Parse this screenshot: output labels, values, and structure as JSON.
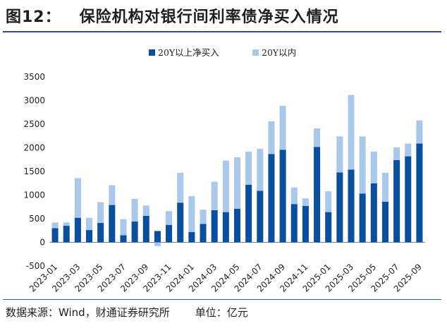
{
  "title": "图12：   保险机构对银行间利率债净买入情况",
  "footer": {
    "source": "数据来源：Wind，财通证券研究所",
    "unit": "单位：亿元"
  },
  "colors": {
    "series1": "#0a4f9c",
    "series2": "#a9c8ea",
    "rule": "#2b4f8c"
  },
  "chart_data": {
    "type": "bar",
    "stacked": true,
    "title": "",
    "xlabel": "",
    "ylabel": "",
    "ylim": [
      -500,
      3500
    ],
    "yticks": [
      -500,
      0,
      500,
      1000,
      1500,
      2000,
      2500,
      3000,
      3500
    ],
    "legend_position": "top-center",
    "categories": [
      "2023-01",
      "2023-02",
      "2023-03",
      "2023-04",
      "2023-05",
      "2023-06",
      "2023-07",
      "2023-08",
      "2023-09",
      "2023-10",
      "2023-11",
      "2023-12",
      "2024-01",
      "2024-02",
      "2024-03",
      "2024-04",
      "2024-05",
      "2024-06",
      "2024-07",
      "2024-08",
      "2024-09",
      "2024-10",
      "2024-11",
      "2024-12",
      "2025-01",
      "2025-02",
      "2025-03",
      "2025-04",
      "2025-05",
      "2025-06",
      "2025-07",
      "2025-08",
      "2025-09"
    ],
    "xtick_labels": [
      "2023-01",
      "2023-03",
      "2023-05",
      "2023-07",
      "2023-09",
      "2023-11",
      "2024-01",
      "2024-03",
      "2024-05",
      "2024-07",
      "2024-09",
      "2024-11",
      "2025-01",
      "2025-03",
      "2025-05",
      "2025-07",
      "2025-09"
    ],
    "series": [
      {
        "name": "20Y以上净买入",
        "values": [
          300,
          350,
          520,
          260,
          410,
          790,
          150,
          440,
          560,
          240,
          370,
          840,
          220,
          390,
          680,
          640,
          710,
          1220,
          1090,
          1870,
          1960,
          810,
          770,
          2020,
          640,
          1480,
          1540,
          1030,
          1250,
          860,
          1740,
          1820,
          2090
        ]
      },
      {
        "name": "20Y以内",
        "values": [
          120,
          70,
          840,
          260,
          440,
          420,
          340,
          480,
          220,
          -80,
          290,
          630,
          760,
          300,
          600,
          1090,
          1090,
          700,
          890,
          690,
          930,
          350,
          160,
          390,
          440,
          760,
          1580,
          1210,
          670,
          610,
          270,
          270,
          490
        ]
      }
    ]
  }
}
